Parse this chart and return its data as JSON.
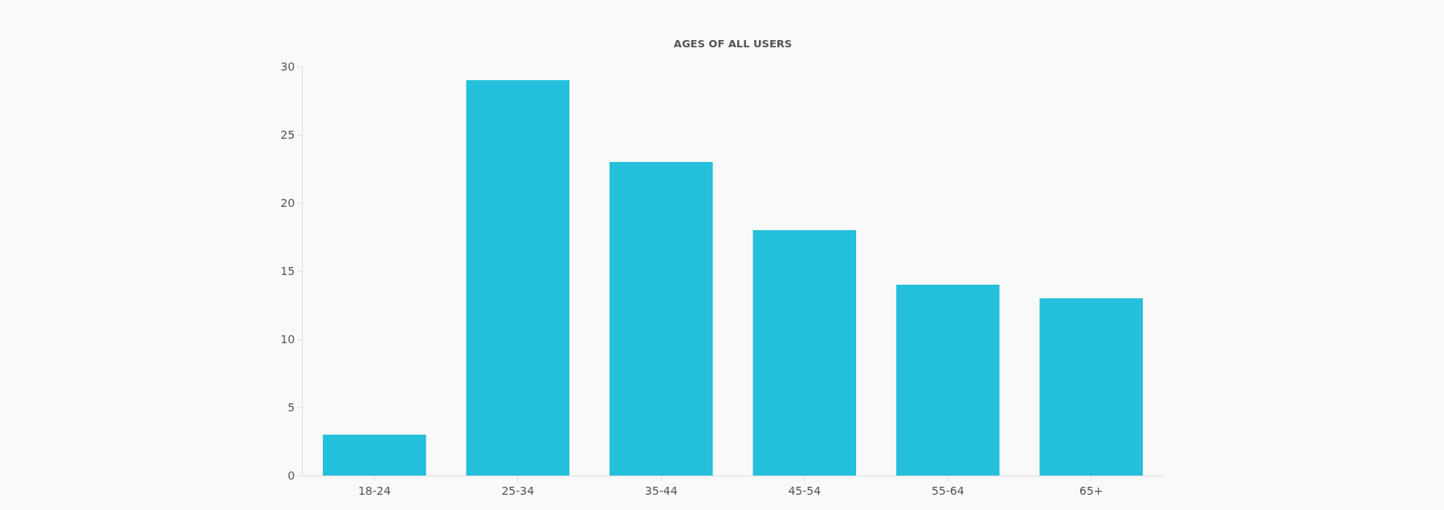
{
  "chart_data": {
    "type": "bar",
    "title": "AGES OF ALL USERS",
    "categories": [
      "18-24",
      "25-34",
      "35-44",
      "45-54",
      "55-64",
      "65+"
    ],
    "values": [
      3,
      29,
      23,
      18,
      14,
      13
    ],
    "color": "#24bfda",
    "ylim": [
      0,
      30
    ],
    "yticks": [
      0,
      5,
      10,
      15,
      20,
      25,
      30
    ],
    "grid": false
  }
}
